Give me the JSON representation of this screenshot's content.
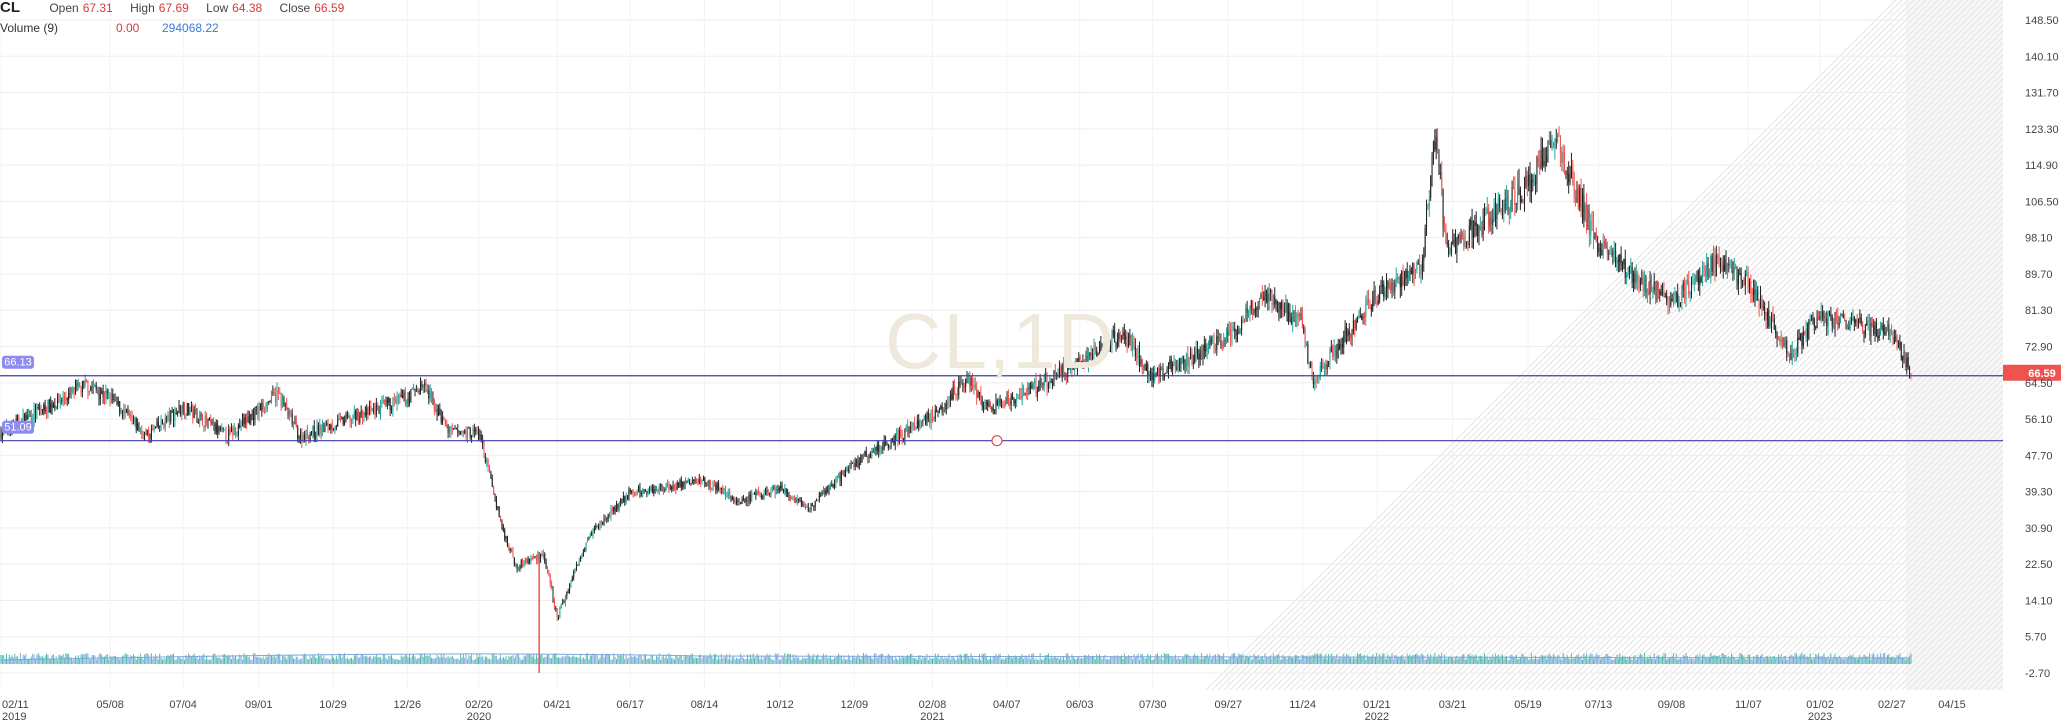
{
  "header": {
    "symbol": "CL",
    "open_label": "Open",
    "open_value": "67.31",
    "high_label": "High",
    "high_value": "67.69",
    "low_label": "Low",
    "low_value": "64.38",
    "close_label": "Close",
    "close_value": "66.59",
    "volume_label": "Volume (9)",
    "volume_value_1": "0.00",
    "volume_value_2": "294068.22"
  },
  "watermark": "CL,1D",
  "price_badge": "66.59",
  "hline_labels": [
    "66.13",
    "51.09"
  ],
  "colors": {
    "up": "#26a69a",
    "down": "#ef5350",
    "neutral": "#222222",
    "hline": "#3f3fa8",
    "badge": "#ef5350",
    "hlabel": "#8c8cf0",
    "volume": "#5b9bd5",
    "grid": "#eeeeee",
    "axis_text": "#444444"
  },
  "chart_data": {
    "type": "candlestick",
    "title": "CL",
    "ylim": [
      -2.7,
      148.5
    ],
    "y_ticks": [
      "148.50",
      "140.10",
      "131.70",
      "123.30",
      "114.90",
      "106.50",
      "98.10",
      "89.70",
      "81.30",
      "72.90",
      "64.50",
      "56.10",
      "47.70",
      "39.30",
      "30.90",
      "22.50",
      "14.10",
      "5.70",
      "-2.70"
    ],
    "x_ticks": [
      {
        "label": "02/11",
        "year": "2019"
      },
      {
        "label": "05/08",
        "year": ""
      },
      {
        "label": "07/04",
        "year": ""
      },
      {
        "label": "09/01",
        "year": ""
      },
      {
        "label": "10/29",
        "year": ""
      },
      {
        "label": "12/26",
        "year": ""
      },
      {
        "label": "02/20",
        "year": "2020"
      },
      {
        "label": "04/21",
        "year": ""
      },
      {
        "label": "06/17",
        "year": ""
      },
      {
        "label": "08/14",
        "year": ""
      },
      {
        "label": "10/12",
        "year": ""
      },
      {
        "label": "12/09",
        "year": ""
      },
      {
        "label": "02/08",
        "year": "2021"
      },
      {
        "label": "04/07",
        "year": ""
      },
      {
        "label": "06/03",
        "year": ""
      },
      {
        "label": "07/30",
        "year": ""
      },
      {
        "label": "09/27",
        "year": ""
      },
      {
        "label": "11/24",
        "year": ""
      },
      {
        "label": "01/21",
        "year": "2022"
      },
      {
        "label": "03/21",
        "year": ""
      },
      {
        "label": "05/19",
        "year": ""
      },
      {
        "label": "07/13",
        "year": ""
      },
      {
        "label": "09/08",
        "year": ""
      },
      {
        "label": "11/07",
        "year": ""
      },
      {
        "label": "01/02",
        "year": "2023"
      },
      {
        "label": "02/27",
        "year": ""
      },
      {
        "label": "04/15",
        "year": ""
      }
    ],
    "horizontal_lines": [
      66.13,
      51.09
    ],
    "last_close": 66.59,
    "series": [
      {
        "x": "2019-02-11",
        "close": 53
      },
      {
        "x": "2019-04-20",
        "close": 64
      },
      {
        "x": "2019-05-08",
        "close": 61
      },
      {
        "x": "2019-06-05",
        "close": 52
      },
      {
        "x": "2019-07-04",
        "close": 59
      },
      {
        "x": "2019-08-07",
        "close": 52
      },
      {
        "x": "2019-09-16",
        "close": 62
      },
      {
        "x": "2019-10-03",
        "close": 52
      },
      {
        "x": "2019-11-20",
        "close": 57
      },
      {
        "x": "2019-12-26",
        "close": 61
      },
      {
        "x": "2020-01-07",
        "close": 64
      },
      {
        "x": "2020-01-28",
        "close": 53
      },
      {
        "x": "2020-02-20",
        "close": 53
      },
      {
        "x": "2020-03-09",
        "close": 31
      },
      {
        "x": "2020-03-20",
        "close": 22
      },
      {
        "x": "2020-04-10",
        "close": 25
      },
      {
        "x": "2020-04-21",
        "close": 10
      },
      {
        "x": "2020-05-15",
        "close": 29
      },
      {
        "x": "2020-06-17",
        "close": 39
      },
      {
        "x": "2020-08-14",
        "close": 42
      },
      {
        "x": "2020-09-10",
        "close": 37
      },
      {
        "x": "2020-10-12",
        "close": 40
      },
      {
        "x": "2020-11-02",
        "close": 35
      },
      {
        "x": "2020-12-09",
        "close": 46
      },
      {
        "x": "2021-02-08",
        "close": 57
      },
      {
        "x": "2021-03-08",
        "close": 66
      },
      {
        "x": "2021-03-23",
        "close": 58
      },
      {
        "x": "2021-04-07",
        "close": 60
      },
      {
        "x": "2021-06-03",
        "close": 69
      },
      {
        "x": "2021-07-06",
        "close": 76
      },
      {
        "x": "2021-07-30",
        "close": 66
      },
      {
        "x": "2021-09-27",
        "close": 75
      },
      {
        "x": "2021-10-26",
        "close": 85
      },
      {
        "x": "2021-11-24",
        "close": 78
      },
      {
        "x": "2021-12-01",
        "close": 65
      },
      {
        "x": "2022-01-21",
        "close": 85
      },
      {
        "x": "2022-02-25",
        "close": 92
      },
      {
        "x": "2022-03-08",
        "close": 124
      },
      {
        "x": "2022-03-16",
        "close": 95
      },
      {
        "x": "2022-05-19",
        "close": 110
      },
      {
        "x": "2022-06-08",
        "close": 122
      },
      {
        "x": "2022-07-13",
        "close": 96
      },
      {
        "x": "2022-09-08",
        "close": 83
      },
      {
        "x": "2022-10-10",
        "close": 92
      },
      {
        "x": "2022-11-07",
        "close": 88
      },
      {
        "x": "2022-12-09",
        "close": 71
      },
      {
        "x": "2023-01-02",
        "close": 80
      },
      {
        "x": "2023-02-27",
        "close": 76
      },
      {
        "x": "2023-03-15",
        "close": 66.59
      }
    ]
  }
}
